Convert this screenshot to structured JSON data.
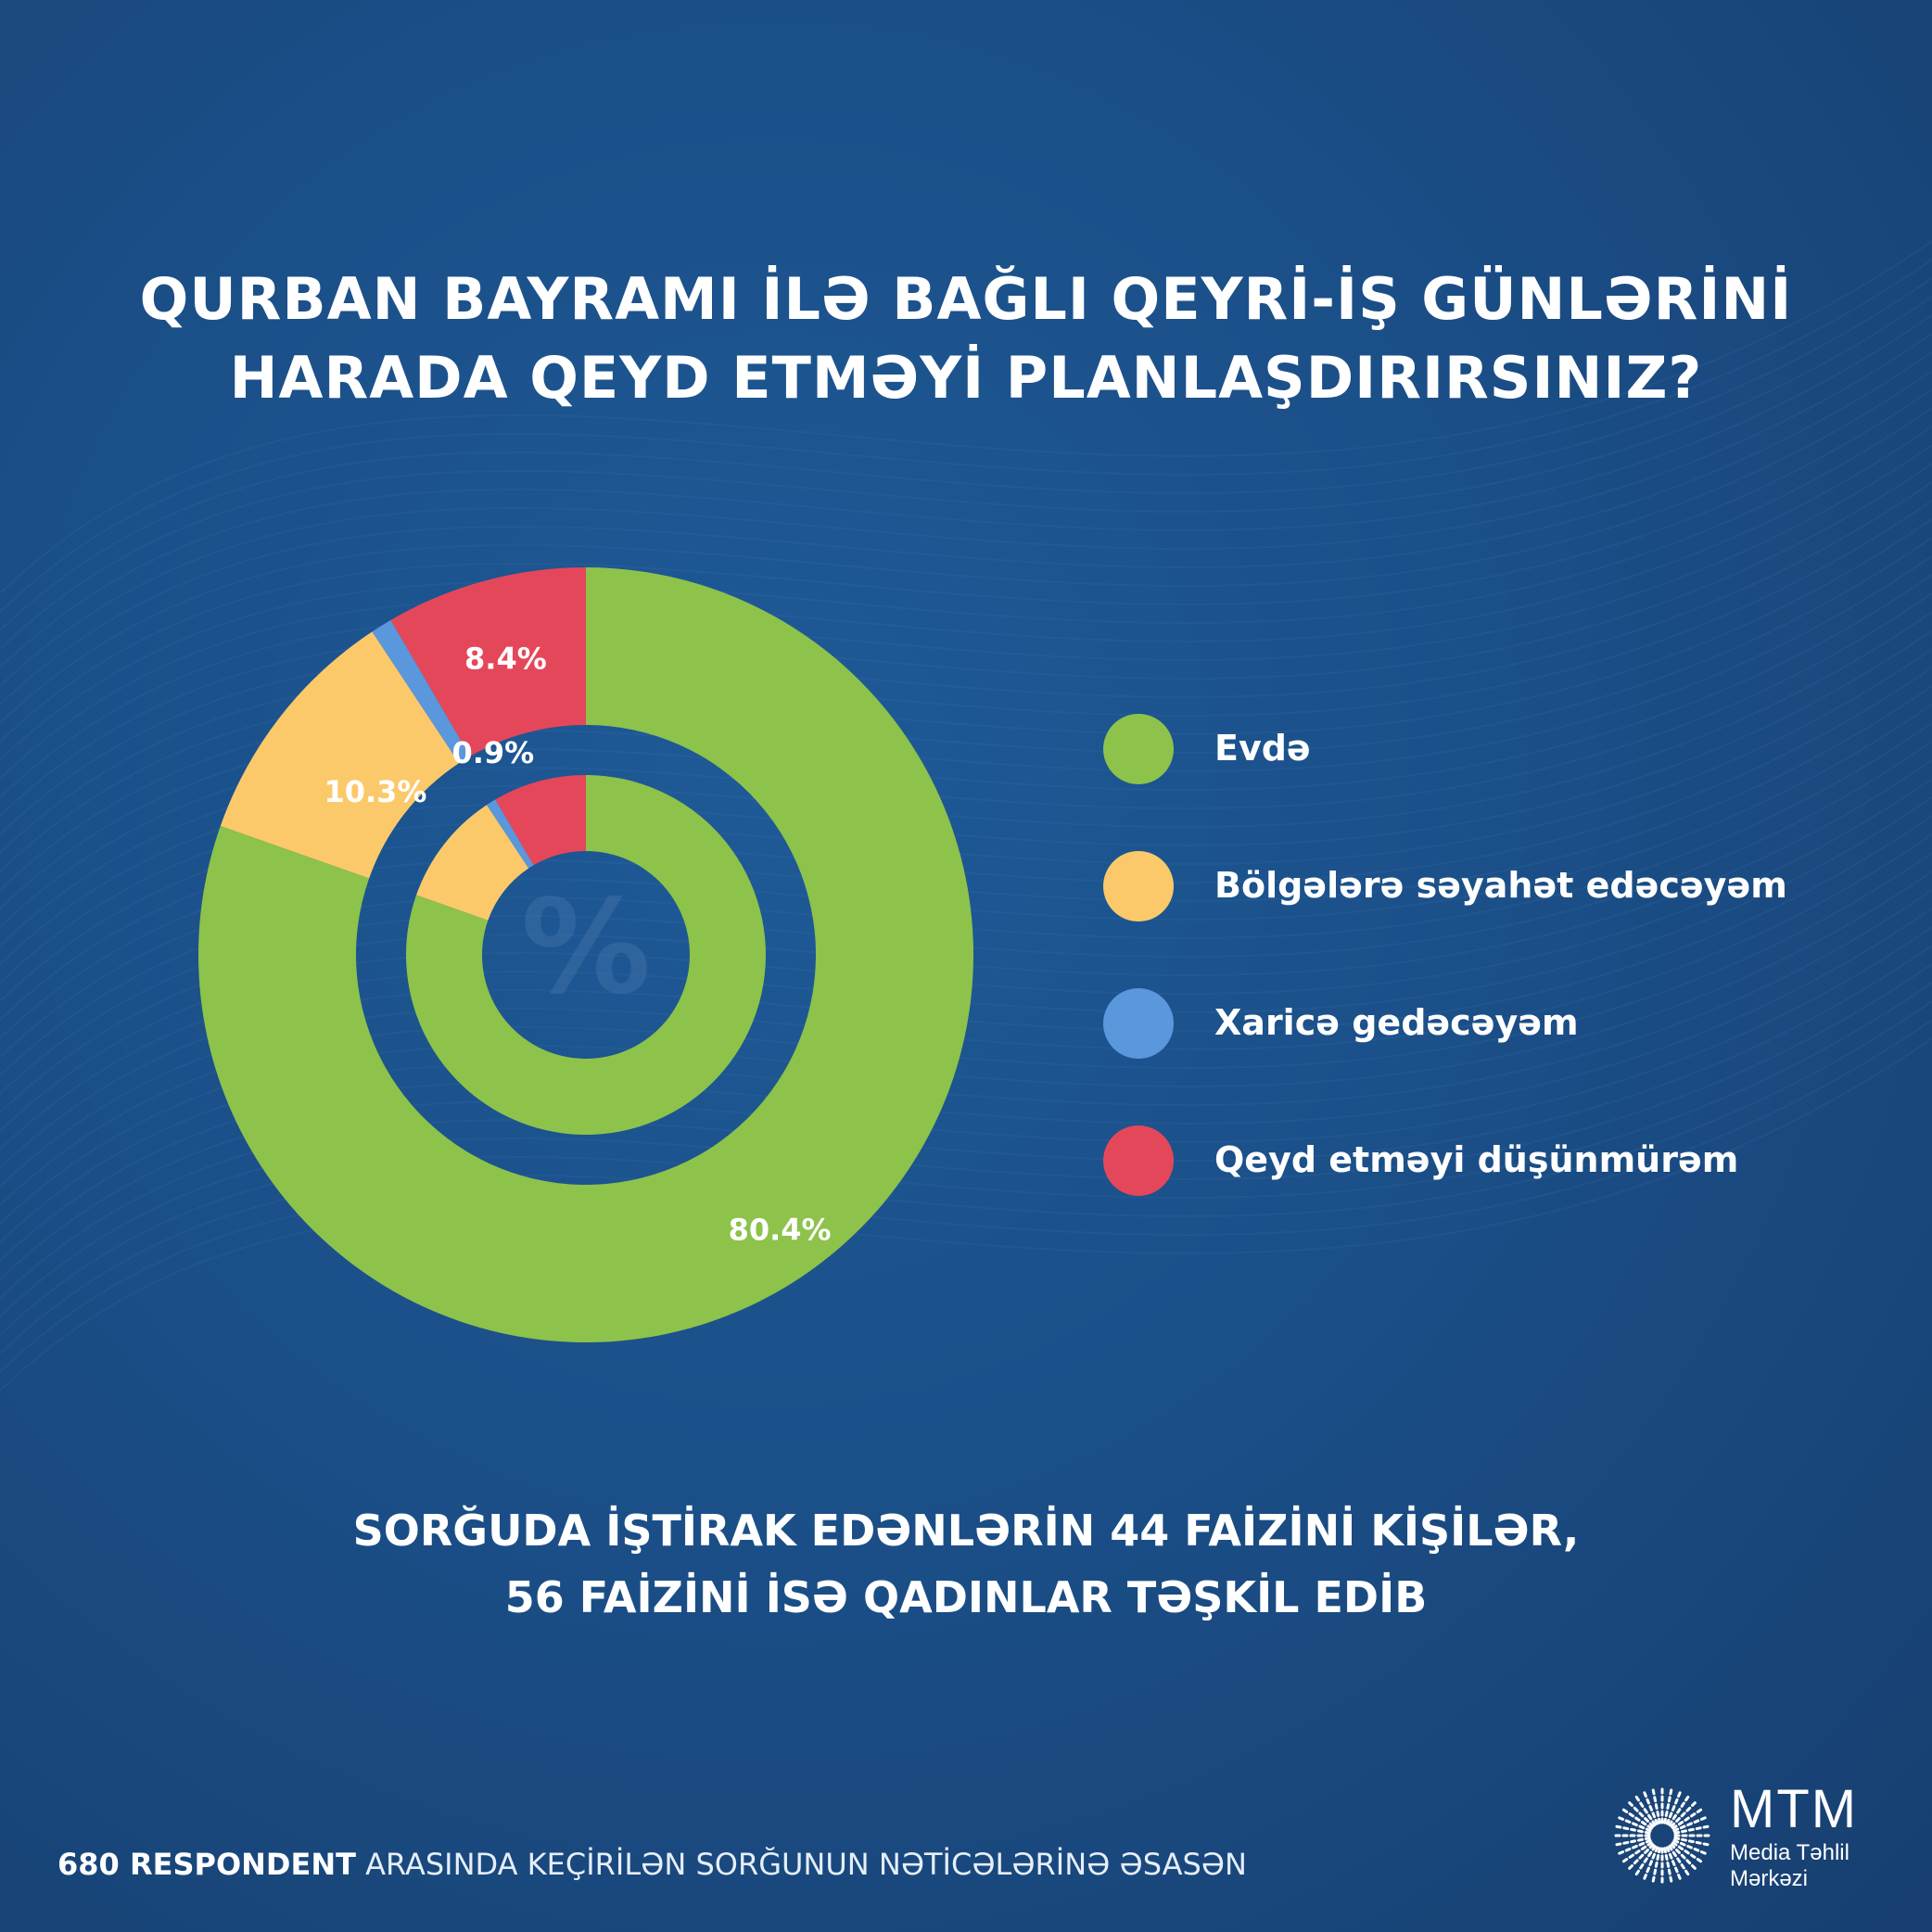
{
  "title": {
    "line1": "QURBAN BAYRAMI İLƏ BAĞLI QEYRİ-İŞ GÜNLƏRİNİ",
    "line2": "HARADA QEYD ETMƏYİ PLANLAŞDIRIRSINIZ?"
  },
  "chart_data": {
    "type": "pie",
    "categories": [
      "Evdə",
      "Bölgələrə səyahət edəcəyəm",
      "Xaricə gedəcəyəm",
      "Qeyd etməyi düşünmürəm"
    ],
    "values": [
      80.4,
      10.3,
      0.9,
      8.4
    ],
    "labels": [
      "80.4%",
      "10.3%",
      "0.9%",
      "8.4%"
    ],
    "colors": [
      "#8dc24b",
      "#fbc96a",
      "#5b97dc",
      "#e5475a"
    ],
    "center_symbol": "%",
    "legend_position": "right"
  },
  "legend": {
    "items": [
      {
        "label": "Evdə",
        "color": "#8dc24b"
      },
      {
        "label": "Bölgələrə səyahət edəcəyəm",
        "color": "#fbc96a"
      },
      {
        "label": "Xaricə gedəcəyəm",
        "color": "#5b97dc"
      },
      {
        "label": "Qeyd etməyi düşünmürəm",
        "color": "#e5475a"
      }
    ]
  },
  "note": {
    "line1": "SORĞUDA İŞTİRAK EDƏNLƏRİN 44 FAİZİNİ KİŞİLƏR,",
    "line2": "56 FAİZİNİ İSƏ QADINLAR TƏŞKİL EDİB"
  },
  "footer": {
    "strong": "680 RESPONDENT",
    "rest": " ARASINDA KEÇİRİLƏN SORĞUNUN NƏTİCƏLƏRİNƏ ƏSASƏN"
  },
  "logo": {
    "main": "MTM",
    "line1": "Media Təhlil",
    "line2": "Mərkəzi"
  }
}
